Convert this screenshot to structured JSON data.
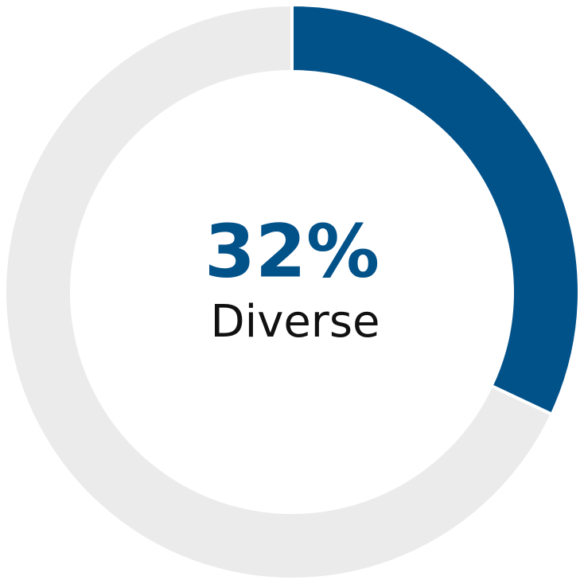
{
  "chart_data": {
    "type": "donut",
    "categories": [
      "Diverse",
      null
    ],
    "values": [
      32,
      68
    ],
    "value_labels": [
      "32%",
      null
    ],
    "colors": [
      "#02528a",
      "#ebebeb"
    ]
  }
}
